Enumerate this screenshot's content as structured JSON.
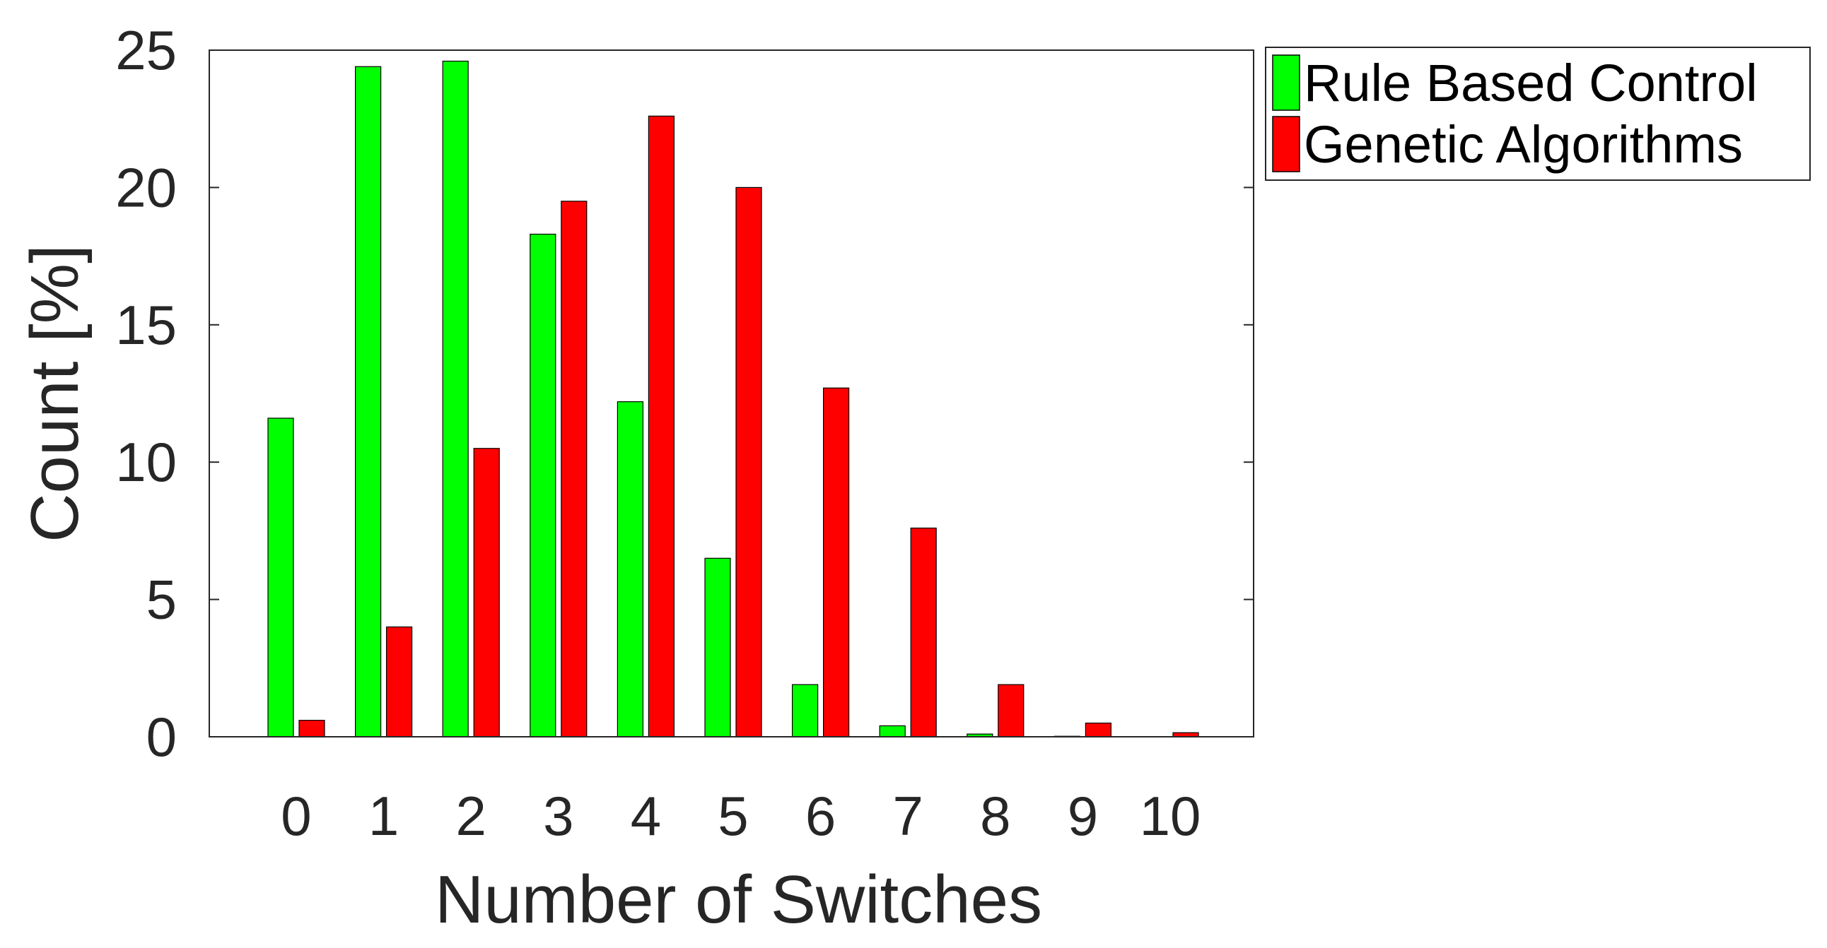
{
  "chart_data": {
    "type": "bar",
    "categories": [
      "0",
      "1",
      "2",
      "3",
      "4",
      "5",
      "6",
      "7",
      "8",
      "9",
      "10"
    ],
    "series": [
      {
        "name": "Rule Based Control",
        "color": "#00ff00",
        "values": [
          11.6,
          24.4,
          24.6,
          18.3,
          12.2,
          6.5,
          1.9,
          0.4,
          0.1,
          0.02,
          0.0
        ]
      },
      {
        "name": "Genetic Algorithms",
        "color": "#ff0000",
        "values": [
          0.6,
          4.0,
          10.5,
          19.5,
          22.6,
          20.0,
          12.7,
          7.6,
          1.9,
          0.5,
          0.15
        ]
      }
    ],
    "xlabel": "Number of Switches",
    "ylabel": "Count [%]",
    "ylim": [
      0,
      25
    ],
    "yticks": [
      "0",
      "5",
      "10",
      "15",
      "20",
      "25"
    ],
    "grid": false,
    "legend_position": "top-right-outside"
  }
}
